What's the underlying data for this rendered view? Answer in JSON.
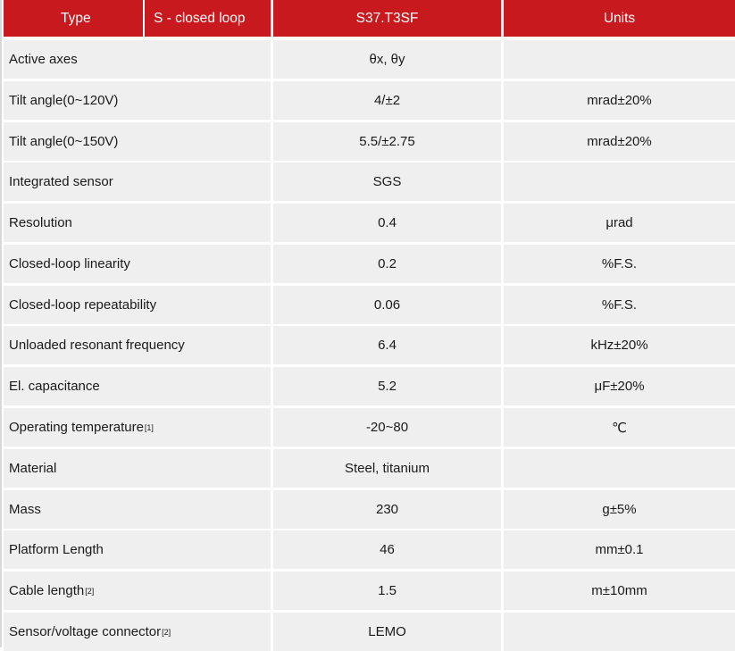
{
  "header": {
    "type_label": "Type",
    "mode_label": "S - closed loop",
    "model_label": "S37.T3SF",
    "units_label": "Units"
  },
  "rows": [
    {
      "label": "Active axes",
      "sup": "",
      "value": "θx, θy",
      "unit": ""
    },
    {
      "label": "Tilt angle(0~120V)",
      "sup": "",
      "value": "4/±2",
      "unit": "mrad±20%"
    },
    {
      "label": "Tilt angle(0~150V)",
      "sup": "",
      "value": "5.5/±2.75",
      "unit": "mrad±20%"
    },
    {
      "label": "Integrated sensor",
      "sup": "",
      "value": "SGS",
      "unit": ""
    },
    {
      "label": "Resolution",
      "sup": "",
      "value": "0.4",
      "unit": "μrad"
    },
    {
      "label": "Closed-loop linearity",
      "sup": "",
      "value": "0.2",
      "unit": "%F.S."
    },
    {
      "label": "Closed-loop repeatability",
      "sup": "",
      "value": "0.06",
      "unit": "%F.S."
    },
    {
      "label": "Unloaded resonant frequency",
      "sup": "",
      "value": "6.4",
      "unit": "kHz±20%"
    },
    {
      "label": "El. capacitance",
      "sup": "",
      "value": "5.2",
      "unit": "μF±20%"
    },
    {
      "label": "Operating temperature",
      "sup": "[1]",
      "value": "-20~80",
      "unit": "℃"
    },
    {
      "label": "Material",
      "sup": "",
      "value": "Steel, titanium",
      "unit": ""
    },
    {
      "label": "Mass",
      "sup": "",
      "value": "230",
      "unit": "g±5%"
    },
    {
      "label": "Platform Length",
      "sup": "",
      "value": "46",
      "unit": "mm±0.1"
    },
    {
      "label": "Cable length",
      "sup": "[2]",
      "value": "1.5",
      "unit": "m±10mm"
    },
    {
      "label": "Sensor/voltage connector",
      "sup": "[2]",
      "value": "LEMO",
      "unit": ""
    }
  ]
}
